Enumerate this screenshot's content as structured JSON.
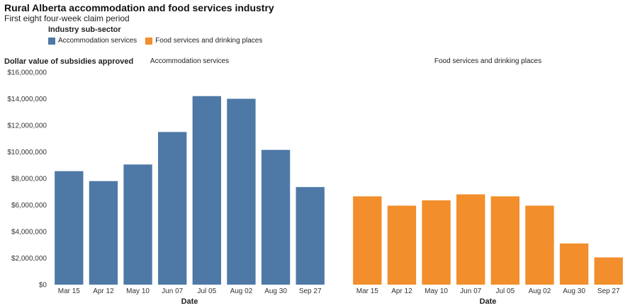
{
  "header": {
    "title": "Rural Alberta accommodation and food services industry",
    "subtitle": "First eight four-week claim period"
  },
  "legend": {
    "title": "Industry sub-sector",
    "items": [
      {
        "label": "Accommodation services",
        "color": "#4e79a7"
      },
      {
        "label": "Food services and drinking places",
        "color": "#f28e2b"
      }
    ]
  },
  "chart_data": {
    "type": "bar",
    "ylabel": "Dollar value of subsidies approved",
    "xlabel": "Date",
    "ylim": [
      0,
      16000000
    ],
    "yticks": [
      0,
      2000000,
      4000000,
      6000000,
      8000000,
      10000000,
      12000000,
      14000000,
      16000000
    ],
    "ytick_labels": [
      "$0",
      "$2,000,000",
      "$4,000,000",
      "$6,000,000",
      "$8,000,000",
      "$10,000,000",
      "$12,000,000",
      "$14,000,000",
      "$16,000,000"
    ],
    "categories": [
      "Mar 15",
      "Apr 12",
      "May 10",
      "Jun 07",
      "Jul 05",
      "Aug 02",
      "Aug 30",
      "Sep 27"
    ],
    "grid": false,
    "series": [
      {
        "name": "Accommodation services",
        "color": "#4e79a7",
        "values": [
          8550000,
          7800000,
          9050000,
          11500000,
          14200000,
          14000000,
          10150000,
          7350000
        ]
      },
      {
        "name": "Food services and drinking places",
        "color": "#f28e2b",
        "values": [
          6650000,
          5950000,
          6350000,
          6800000,
          6650000,
          5950000,
          3100000,
          2050000
        ]
      }
    ]
  }
}
